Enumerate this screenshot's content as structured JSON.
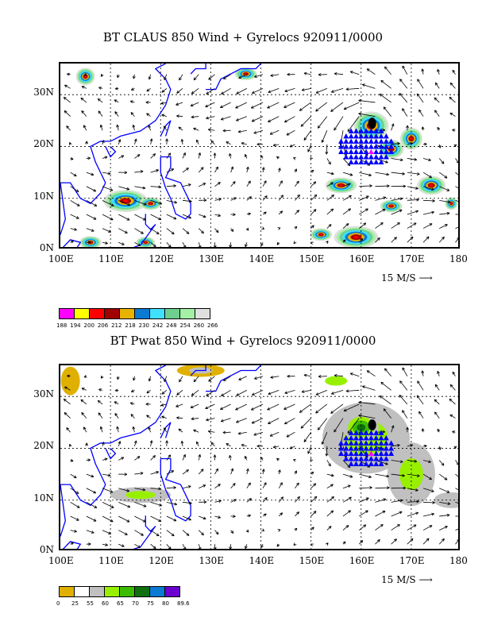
{
  "panels": [
    {
      "title": "BT CLAUS 850 Wind + Gyrelocs 920911/0000",
      "lat_labels": [
        "30N",
        "20N",
        "10N",
        "0N"
      ],
      "lon_labels": [
        "100E",
        "110E",
        "120E",
        "130E",
        "140E",
        "150E",
        "160E",
        "170E",
        "180"
      ],
      "reference_vector": "15 M/S",
      "colorbar": {
        "colors": [
          "#ff00ff",
          "#ffff00",
          "#ff0000",
          "#a00000",
          "#e6b400",
          "#0a7ad2",
          "#40e0ff",
          "#6fcf8f",
          "#a4f0a4",
          "#e0e0e0"
        ],
        "labels": [
          "188",
          "194",
          "200",
          "206",
          "212",
          "218",
          "230",
          "242",
          "248",
          "254",
          "260",
          "266"
        ]
      }
    },
    {
      "title": "BT Pwat 850 Wind + Gyrelocs 920911/0000",
      "lat_labels": [
        "30N",
        "20N",
        "10N",
        "0N"
      ],
      "lon_labels": [
        "100E",
        "110E",
        "120E",
        "130E",
        "140E",
        "150E",
        "160E",
        "170E",
        "180"
      ],
      "reference_vector": "15 M/S",
      "colorbar": {
        "colors": [
          "#e0b000",
          "#ffffff",
          "#c0c0c0",
          "#98f000",
          "#3cbc00",
          "#107010",
          "#0a7ad2",
          "#6a00d0"
        ],
        "labels": [
          "0",
          "25",
          "55",
          "60",
          "65",
          "70",
          "75",
          "80",
          "89.6"
        ]
      }
    }
  ],
  "map_extent": {
    "lon": [
      100,
      180
    ],
    "lat": [
      0,
      36
    ]
  },
  "gyre_center": {
    "lon": 162.2,
    "lat": 24.5
  },
  "gyre_triangle_grid": {
    "lon_min": 156,
    "lon_max": 166,
    "lat_min": 17,
    "lat_max": 23,
    "step": 1
  },
  "magenta_triangle": {
    "lon": 162,
    "lat": 19
  },
  "colors": {
    "coast": "#0000ff",
    "triangle": "#0000ff",
    "triangle_accent": "#ff00ff",
    "arrow": "#000000"
  }
}
